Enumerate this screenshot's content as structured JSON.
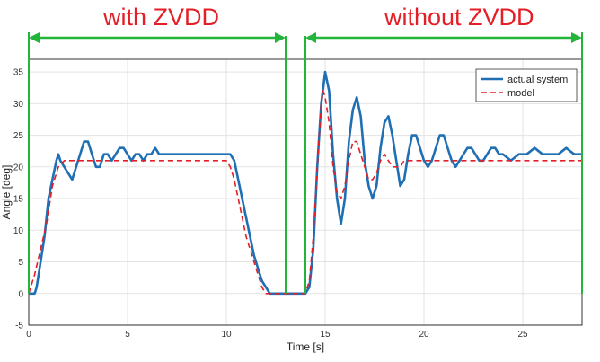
{
  "annotations": {
    "left": "with ZVDD",
    "right": "without ZVDD",
    "arrow_color": "#22b53a",
    "text_color": "#e41e26",
    "left_span": [
      0,
      13
    ],
    "right_span": [
      14,
      28
    ],
    "separator_x": [
      13,
      14
    ]
  },
  "chart_data": {
    "type": "line",
    "title": "",
    "xlabel": "Time [s]",
    "ylabel": "Angle [deg]",
    "xlim": [
      0,
      28
    ],
    "ylim": [
      -5,
      37
    ],
    "xticks": [
      0,
      5,
      10,
      15,
      20,
      25
    ],
    "yticks": [
      -5,
      0,
      5,
      10,
      15,
      20,
      25,
      30,
      35
    ],
    "grid": true,
    "legend": "top-right",
    "series": [
      {
        "name": "actual system",
        "color": "#1f6fb5",
        "style": "solid",
        "points": [
          [
            0,
            0
          ],
          [
            0.3,
            0
          ],
          [
            0.4,
            1
          ],
          [
            0.5,
            3
          ],
          [
            0.6,
            5
          ],
          [
            0.7,
            7
          ],
          [
            0.8,
            9
          ],
          [
            0.9,
            12
          ],
          [
            1.0,
            15
          ],
          [
            1.2,
            18
          ],
          [
            1.4,
            21
          ],
          [
            1.5,
            22
          ],
          [
            1.6,
            21
          ],
          [
            1.8,
            20
          ],
          [
            2.0,
            19
          ],
          [
            2.2,
            18
          ],
          [
            2.4,
            20
          ],
          [
            2.6,
            22
          ],
          [
            2.8,
            24
          ],
          [
            3.0,
            24
          ],
          [
            3.2,
            22
          ],
          [
            3.4,
            20
          ],
          [
            3.6,
            20
          ],
          [
            3.8,
            22
          ],
          [
            4.0,
            22
          ],
          [
            4.2,
            21
          ],
          [
            4.4,
            22
          ],
          [
            4.6,
            23
          ],
          [
            4.8,
            23
          ],
          [
            5.0,
            22
          ],
          [
            5.2,
            21
          ],
          [
            5.4,
            22
          ],
          [
            5.6,
            22
          ],
          [
            5.8,
            21
          ],
          [
            6.0,
            22
          ],
          [
            6.2,
            22
          ],
          [
            6.4,
            23
          ],
          [
            6.6,
            22
          ],
          [
            6.8,
            22
          ],
          [
            7.0,
            22
          ],
          [
            7.5,
            22
          ],
          [
            8.0,
            22
          ],
          [
            9.0,
            22
          ],
          [
            10.2,
            22
          ],
          [
            10.4,
            21
          ],
          [
            10.6,
            18
          ],
          [
            10.8,
            15
          ],
          [
            11.0,
            12
          ],
          [
            11.2,
            9
          ],
          [
            11.4,
            6
          ],
          [
            11.6,
            4
          ],
          [
            11.8,
            2
          ],
          [
            12.0,
            1
          ],
          [
            12.2,
            0
          ],
          [
            13.0,
            0
          ],
          [
            14.0,
            0
          ],
          [
            14.2,
            1
          ],
          [
            14.4,
            7
          ],
          [
            14.6,
            20
          ],
          [
            14.8,
            30
          ],
          [
            15.0,
            35
          ],
          [
            15.2,
            32
          ],
          [
            15.4,
            22
          ],
          [
            15.6,
            15
          ],
          [
            15.8,
            11
          ],
          [
            16.0,
            15
          ],
          [
            16.2,
            24
          ],
          [
            16.4,
            29
          ],
          [
            16.6,
            31
          ],
          [
            16.8,
            28
          ],
          [
            17.0,
            21
          ],
          [
            17.2,
            17
          ],
          [
            17.4,
            15
          ],
          [
            17.6,
            17
          ],
          [
            17.8,
            23
          ],
          [
            18.0,
            27
          ],
          [
            18.2,
            28
          ],
          [
            18.4,
            25
          ],
          [
            18.6,
            21
          ],
          [
            18.8,
            17
          ],
          [
            19.0,
            18
          ],
          [
            19.2,
            22
          ],
          [
            19.4,
            25
          ],
          [
            19.6,
            25
          ],
          [
            19.8,
            23
          ],
          [
            20.0,
            21
          ],
          [
            20.2,
            20
          ],
          [
            20.4,
            21
          ],
          [
            20.6,
            23
          ],
          [
            20.8,
            25
          ],
          [
            21.0,
            25
          ],
          [
            21.2,
            23
          ],
          [
            21.4,
            21
          ],
          [
            21.6,
            20
          ],
          [
            21.8,
            21
          ],
          [
            22.0,
            22
          ],
          [
            22.2,
            23
          ],
          [
            22.4,
            23
          ],
          [
            22.6,
            22
          ],
          [
            22.8,
            21
          ],
          [
            23.0,
            21
          ],
          [
            23.2,
            22
          ],
          [
            23.4,
            23
          ],
          [
            23.6,
            23
          ],
          [
            23.8,
            22
          ],
          [
            24.0,
            22
          ],
          [
            24.4,
            21
          ],
          [
            24.8,
            22
          ],
          [
            25.2,
            22
          ],
          [
            25.6,
            23
          ],
          [
            26.0,
            22
          ],
          [
            26.4,
            22
          ],
          [
            26.8,
            22
          ],
          [
            27.2,
            23
          ],
          [
            27.6,
            22
          ],
          [
            28.0,
            22
          ]
        ]
      },
      {
        "name": "model",
        "color": "#e41e26",
        "style": "dashed",
        "points": [
          [
            0,
            0
          ],
          [
            0.3,
            3
          ],
          [
            0.6,
            7
          ],
          [
            0.9,
            11
          ],
          [
            1.2,
            17
          ],
          [
            1.5,
            20
          ],
          [
            1.8,
            21
          ],
          [
            2.2,
            21
          ],
          [
            3,
            21
          ],
          [
            5,
            21
          ],
          [
            8,
            21
          ],
          [
            10.0,
            21
          ],
          [
            10.2,
            20
          ],
          [
            10.4,
            18
          ],
          [
            10.6,
            15
          ],
          [
            10.8,
            12
          ],
          [
            11.0,
            9
          ],
          [
            11.2,
            7
          ],
          [
            11.4,
            5
          ],
          [
            11.6,
            3
          ],
          [
            11.8,
            1
          ],
          [
            12.0,
            0
          ],
          [
            13,
            0
          ],
          [
            14.0,
            0
          ],
          [
            14.2,
            2
          ],
          [
            14.4,
            9
          ],
          [
            14.6,
            20
          ],
          [
            14.8,
            30
          ],
          [
            14.9,
            32
          ],
          [
            15.0,
            31
          ],
          [
            15.2,
            27
          ],
          [
            15.4,
            20
          ],
          [
            15.6,
            16
          ],
          [
            15.8,
            15
          ],
          [
            16.0,
            17
          ],
          [
            16.2,
            21
          ],
          [
            16.4,
            24
          ],
          [
            16.6,
            24
          ],
          [
            16.8,
            22
          ],
          [
            17.0,
            20
          ],
          [
            17.2,
            18
          ],
          [
            17.4,
            18
          ],
          [
            17.6,
            19
          ],
          [
            17.8,
            21
          ],
          [
            18.0,
            22
          ],
          [
            18.2,
            21
          ],
          [
            18.4,
            20
          ],
          [
            18.6,
            20
          ],
          [
            18.8,
            20
          ],
          [
            19.0,
            21
          ],
          [
            19.4,
            21
          ],
          [
            20,
            21
          ],
          [
            22,
            21
          ],
          [
            25,
            21
          ],
          [
            28,
            21
          ]
        ]
      }
    ]
  }
}
